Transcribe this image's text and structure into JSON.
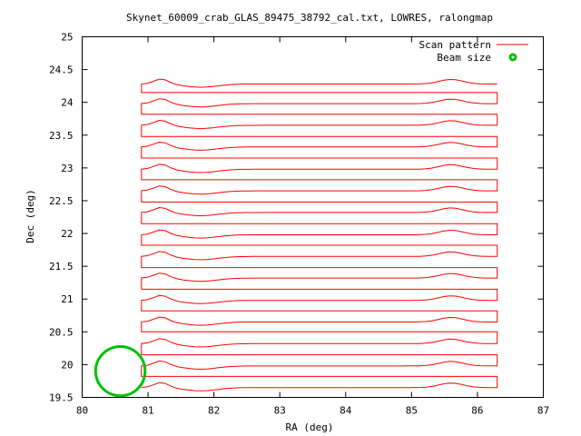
{
  "chart_data": {
    "type": "line",
    "title": "Skynet_60009_crab_GLAS_89475_38792_cal.txt, LOWRES, ralongmap",
    "xlabel": "RA (deg)",
    "ylabel": "Dec (deg)",
    "xlim": [
      80,
      87
    ],
    "ylim": [
      19.5,
      25
    ],
    "x_ticks": [
      "80",
      "81",
      "82",
      "83",
      "84",
      "85",
      "86",
      "87"
    ],
    "y_ticks": [
      "19.5",
      "20",
      "20.5",
      "21",
      "21.5",
      "22",
      "22.5",
      "23",
      "23.5",
      "24",
      "24.5",
      "25"
    ],
    "grid": false,
    "legend_position": "top-right",
    "legend": [
      {
        "label": "Scan pattern",
        "color": "#ff0000",
        "style": "line"
      },
      {
        "label": "Beam size",
        "color": "#00c000",
        "style": "circle"
      }
    ],
    "scan_pattern": {
      "ra_start": 80.9,
      "ra_end": 86.3,
      "dec_levels": [
        19.65,
        19.82,
        19.98,
        20.15,
        20.32,
        20.5,
        20.65,
        20.82,
        20.98,
        21.15,
        21.32,
        21.48,
        21.65,
        21.82,
        21.98,
        22.15,
        22.32,
        22.48,
        22.65,
        22.82,
        22.98,
        23.15,
        23.32,
        23.48,
        23.65,
        23.82,
        23.98,
        24.15,
        24.28
      ]
    },
    "beam": {
      "ra": 80.58,
      "dec": 19.9,
      "diameter_deg": 0.75
    }
  }
}
